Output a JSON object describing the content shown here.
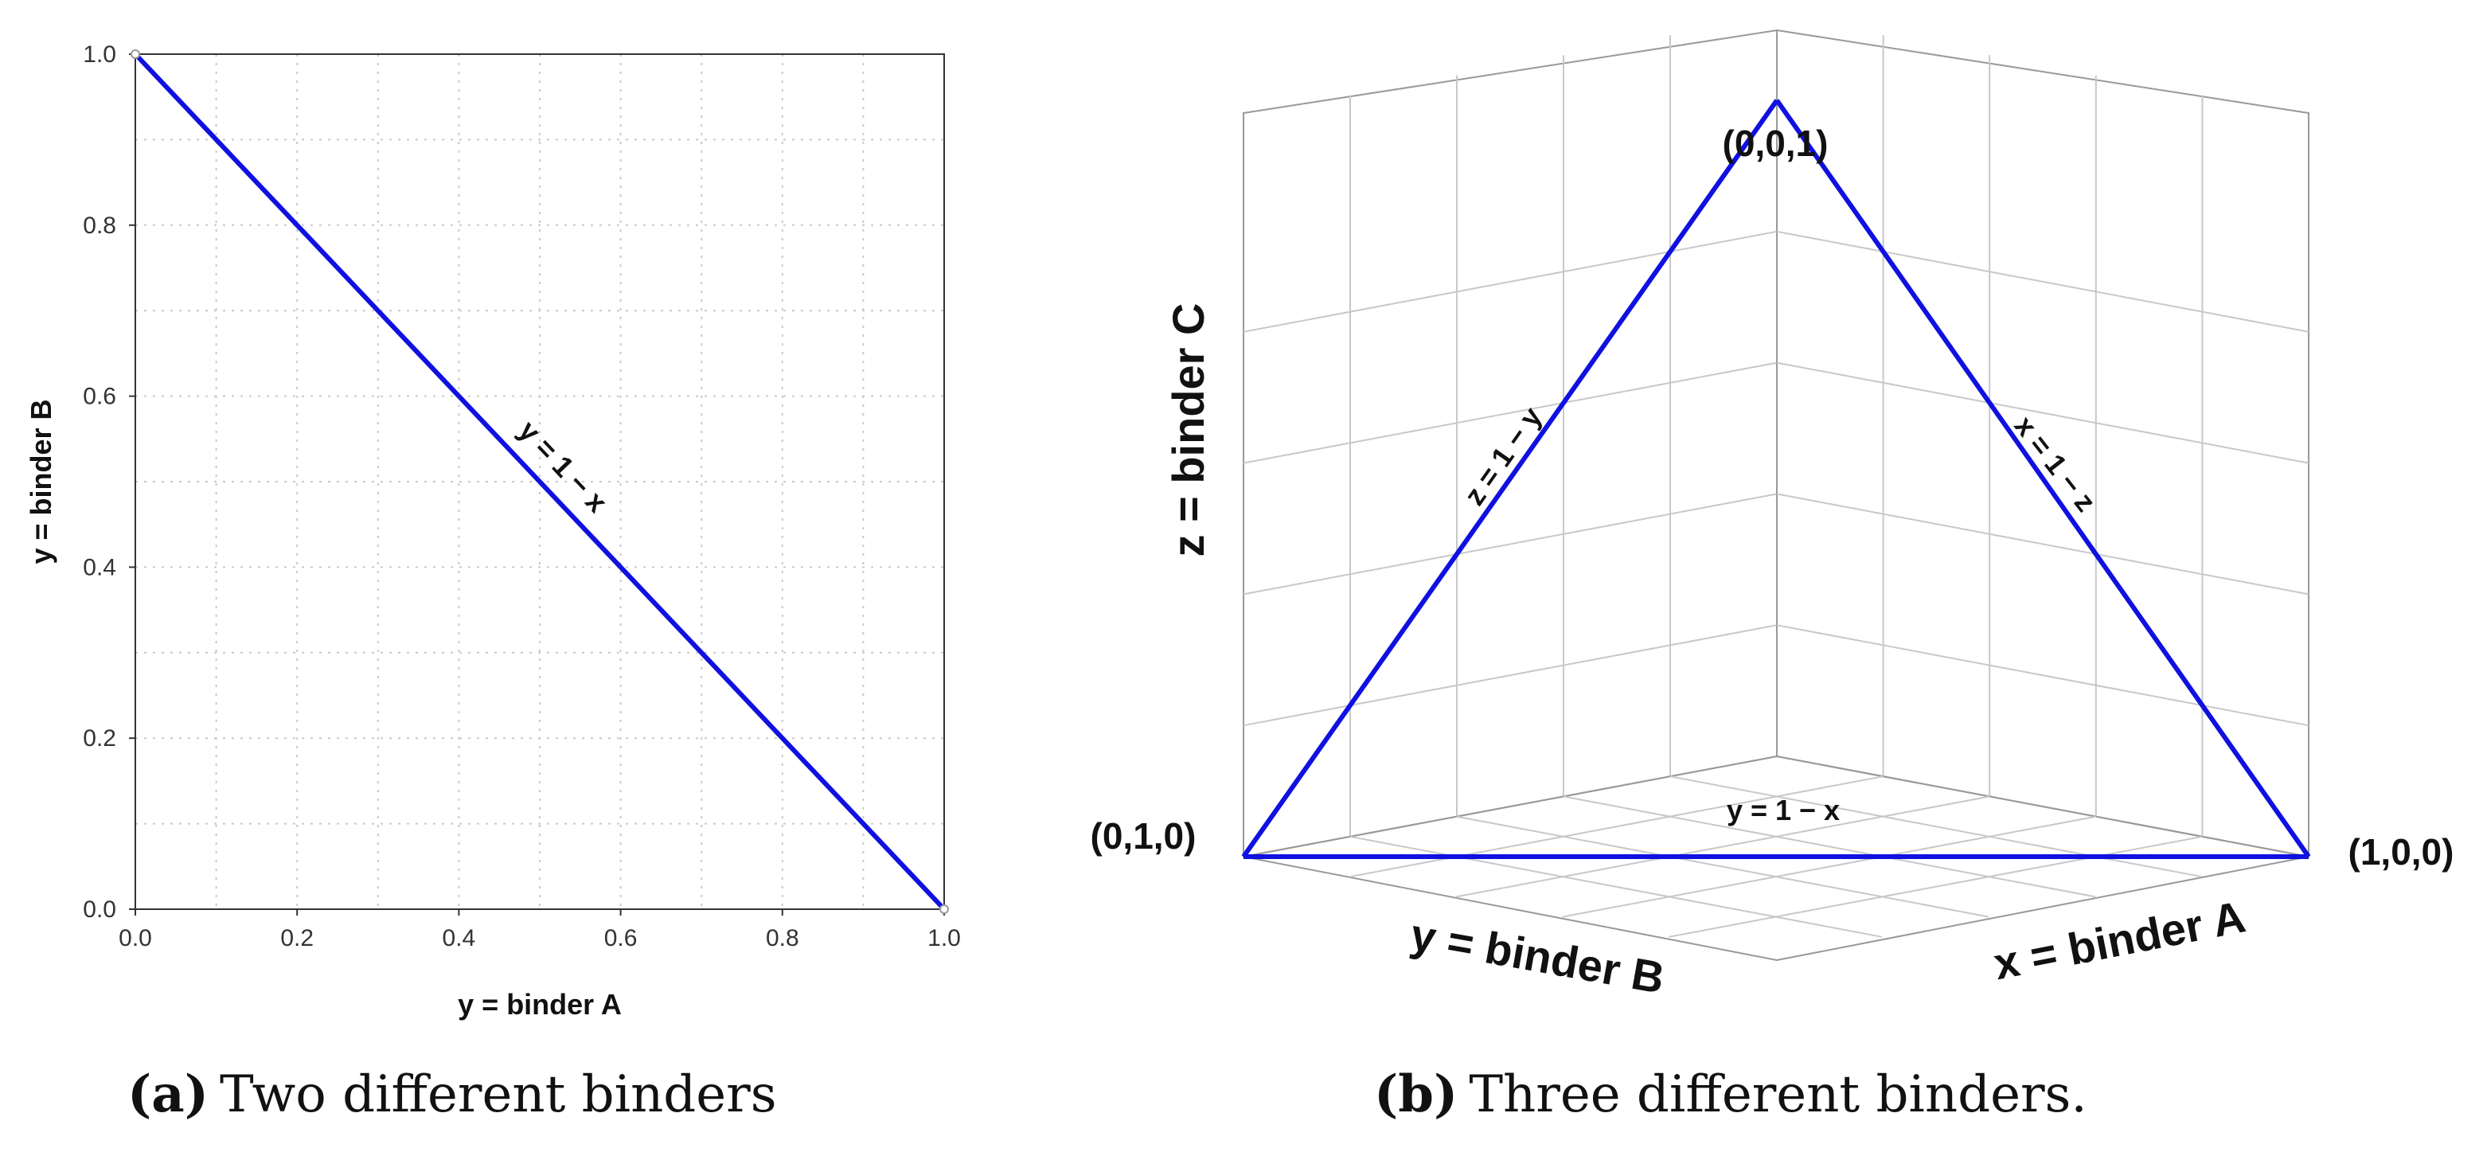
{
  "chart_data": [
    {
      "type": "line",
      "xlabel": "y = binder A",
      "ylabel": "y = binder B",
      "xlim": [
        0,
        1
      ],
      "ylim": [
        0,
        1
      ],
      "xticks": [
        "0.0",
        "0.2",
        "0.4",
        "0.6",
        "0.8",
        "1.0"
      ],
      "yticks": [
        "0.0",
        "0.2",
        "0.4",
        "0.6",
        "0.8",
        "1.0"
      ],
      "grid": true,
      "series": [
        {
          "x": [
            0,
            1
          ],
          "y": [
            1,
            0
          ],
          "color": "#1010e0"
        }
      ],
      "annotations": [
        {
          "text": "y = 1 − x"
        }
      ],
      "caption": {
        "letter": "(a)",
        "text": "Two different binders"
      }
    },
    {
      "type": "line",
      "subtype": "3d",
      "xlabel": "x = binder A",
      "ylabel": "y = binder B",
      "zlabel": "z = binder C",
      "vertices": [
        {
          "label": "(1,0,0)",
          "x": 1,
          "y": 0,
          "z": 0
        },
        {
          "label": "(0,1,0)",
          "x": 0,
          "y": 1,
          "z": 0
        },
        {
          "label": "(0,0,1)",
          "x": 0,
          "y": 0,
          "z": 1
        }
      ],
      "edges": [
        {
          "from": "(0,1,0)",
          "to": "(1,0,0)",
          "label": "y = 1 − x"
        },
        {
          "from": "(0,1,0)",
          "to": "(0,0,1)",
          "label": "z = 1 − y"
        },
        {
          "from": "(0,0,1)",
          "to": "(1,0,0)",
          "label": "x = 1 − z"
        }
      ],
      "color": "#1010e0",
      "grid": true,
      "caption": {
        "letter": "(b)",
        "text": "Three different binders."
      }
    }
  ]
}
